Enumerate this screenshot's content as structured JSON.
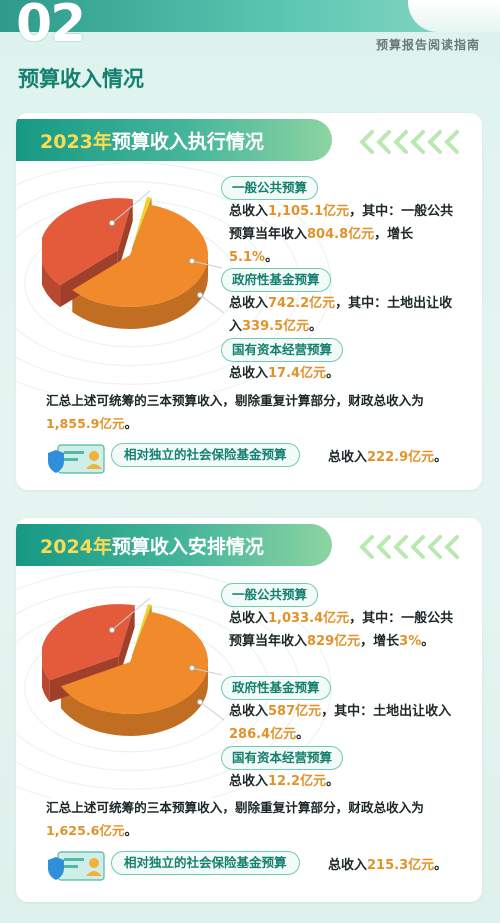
{
  "header": {
    "section_number": "02",
    "guide_label": "预算报告阅读指南",
    "section_title": "预算收入情况"
  },
  "colors": {
    "accent": "#169984",
    "highlight": "#e1932a",
    "year": "#f7dd55"
  },
  "chart_data": [
    {
      "type": "pie",
      "title": "2023年预算收入执行情况",
      "title_year": "2023年",
      "title_rest": "预算收入执行情况",
      "slices": [
        {
          "name": "一般公共预算",
          "value": 1105.1,
          "color": "#f18a2b",
          "text": [
            [
              "总收入",
              ""
            ],
            [
              "1,105.1亿元",
              "hl"
            ],
            [
              "，其中：一般公共预算当年收入",
              ""
            ],
            [
              "804.8亿元",
              "hl"
            ],
            [
              "，增长",
              ""
            ],
            [
              "5.1%",
              "hl"
            ],
            [
              "。",
              ""
            ]
          ]
        },
        {
          "name": "政府性基金预算",
          "value": 742.2,
          "color": "#e45b3c",
          "text": [
            [
              "总收入",
              ""
            ],
            [
              "742.2亿元",
              "hl"
            ],
            [
              "，其中：土地出让收入",
              ""
            ],
            [
              "339.5亿元",
              "hl"
            ],
            [
              "。",
              ""
            ]
          ]
        },
        {
          "name": "国有资本经营预算",
          "value": 17.4,
          "color": "#f3d02e",
          "text": [
            [
              "总收入",
              ""
            ],
            [
              "17.4亿元",
              "hl"
            ],
            [
              "。",
              ""
            ]
          ]
        }
      ],
      "summary": [
        [
          "汇总上述可统筹的三本预算收入，剔除重复计算部分，财政总收入为",
          ""
        ],
        [
          "1,855.9亿元",
          "hl"
        ],
        [
          "。",
          ""
        ]
      ],
      "total": 1855.9,
      "social": {
        "label": "相对独立的社会保险基金预算",
        "text": [
          [
            "总收入",
            ""
          ],
          [
            "222.9亿元",
            "hl"
          ],
          [
            "。",
            ""
          ]
        ]
      }
    },
    {
      "type": "pie",
      "title": "2024年预算收入安排情况",
      "title_year": "2024年",
      "title_rest": "预算收入安排情况",
      "slices": [
        {
          "name": "一般公共预算",
          "value": 1033.4,
          "color": "#f18a2b",
          "text": [
            [
              "总收入",
              ""
            ],
            [
              "1,033.4亿元",
              "hl"
            ],
            [
              "，其中：一般公共预算当年收入",
              ""
            ],
            [
              "829亿元",
              "hl"
            ],
            [
              "，增长",
              ""
            ],
            [
              "3%",
              "hl"
            ],
            [
              "。",
              ""
            ]
          ]
        },
        {
          "name": "政府性基金预算",
          "value": 587,
          "color": "#e45b3c",
          "text": [
            [
              "总收入",
              ""
            ],
            [
              "587亿元",
              "hl"
            ],
            [
              "，其中：土地出让收入",
              ""
            ],
            [
              "286.4亿元",
              "hl"
            ],
            [
              "。",
              ""
            ]
          ]
        },
        {
          "name": "国有资本经营预算",
          "value": 12.2,
          "color": "#f3d02e",
          "text": [
            [
              "总收入",
              ""
            ],
            [
              "12.2亿元",
              "hl"
            ],
            [
              "。",
              ""
            ]
          ]
        }
      ],
      "summary": [
        [
          "汇总上述可统筹的三本预算收入，剔除重复计算部分，财政总收入为",
          ""
        ],
        [
          "1,625.6亿元",
          "hl"
        ],
        [
          "。",
          ""
        ]
      ],
      "total": 1625.6,
      "social": {
        "label": "相对独立的社会保险基金预算",
        "text": [
          [
            "总收入",
            ""
          ],
          [
            "215.3亿元",
            "hl"
          ],
          [
            "。",
            ""
          ]
        ]
      }
    }
  ]
}
